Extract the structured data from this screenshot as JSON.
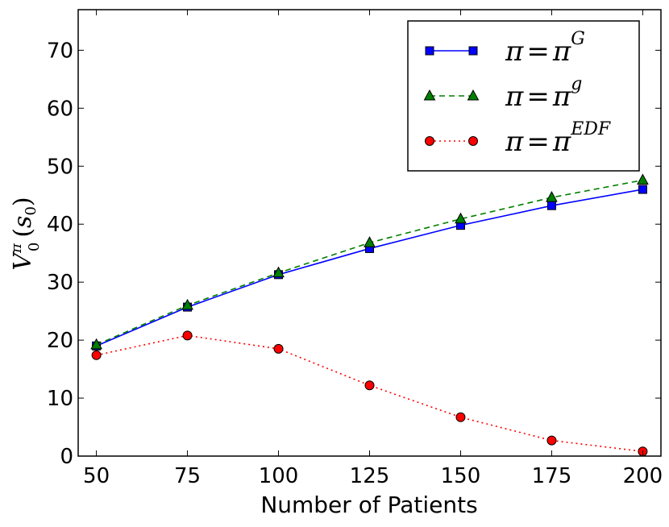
{
  "chart_data": {
    "type": "line",
    "title": "",
    "xlabel": "Number of Patients",
    "ylabel": {
      "base": "V",
      "sub": "0",
      "sup": "π",
      "arg_open": "(",
      "arg": "s",
      "arg_sub": "0",
      "arg_close": ")"
    },
    "x": [
      50,
      75,
      100,
      125,
      150,
      175,
      200
    ],
    "xlim": [
      45,
      205
    ],
    "ylim": [
      0,
      77
    ],
    "xticks": [
      "50",
      "75",
      "100",
      "125",
      "150",
      "175",
      "200"
    ],
    "yticks": [
      "0",
      "10",
      "20",
      "30",
      "40",
      "50",
      "60",
      "70"
    ],
    "grid": false,
    "legend_position": "top-right",
    "series": [
      {
        "name": "π = π^G",
        "legend": {
          "lhs": "π",
          "eq": "=",
          "rhs": "π",
          "sup": "G"
        },
        "values": [
          19.0,
          25.7,
          31.3,
          35.8,
          39.8,
          43.2,
          46.0
        ],
        "color": "#0000ff",
        "marker": "square",
        "dash": "solid"
      },
      {
        "name": "π = π^g",
        "legend": {
          "lhs": "π",
          "eq": "=",
          "rhs": "π",
          "sup": "g"
        },
        "values": [
          19.2,
          26.0,
          31.6,
          36.8,
          40.9,
          44.6,
          47.6
        ],
        "color": "#007f00",
        "marker": "triangle",
        "dash": "dashed"
      },
      {
        "name": "π = π^EDF",
        "legend": {
          "lhs": "π",
          "eq": "=",
          "rhs": "π",
          "sup": "EDF"
        },
        "values": [
          17.4,
          20.8,
          18.5,
          12.2,
          6.7,
          2.7,
          0.8
        ],
        "color": "#ff0000",
        "marker": "circle",
        "dash": "dotted"
      }
    ]
  }
}
